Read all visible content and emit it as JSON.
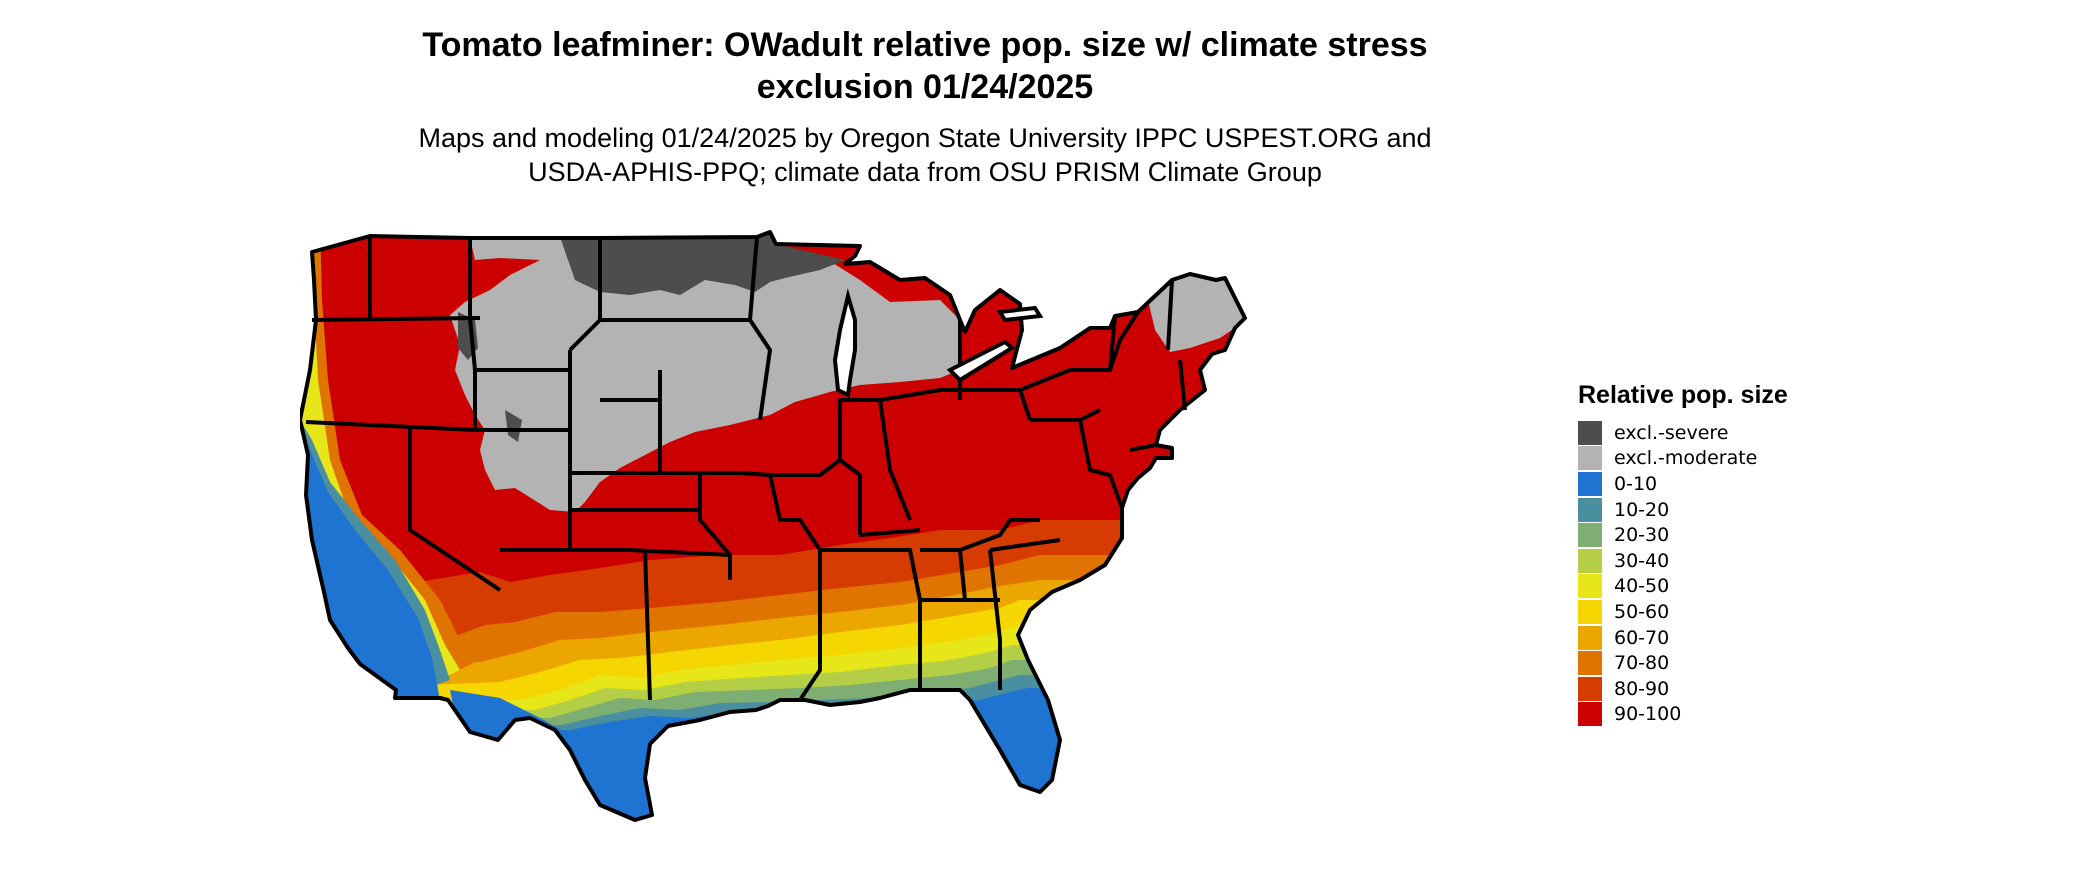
{
  "title": {
    "line1": "Tomato leafminer: OWadult relative pop. size w/ climate stress",
    "line2": "exclusion 01/24/2025"
  },
  "subtitle": {
    "line1": "Maps and modeling 01/24/2025 by Oregon State University IPPC USPEST.ORG and",
    "line2": "USDA-APHIS-PPQ; climate data from OSU PRISM Climate Group"
  },
  "legend": {
    "title": "Relative pop. size",
    "items": [
      {
        "label": "excl.-severe",
        "color": "#4d4d4d"
      },
      {
        "label": "excl.-moderate",
        "color": "#b3b3b3"
      },
      {
        "label": "0-10",
        "color": "#1f73d1"
      },
      {
        "label": "10-20",
        "color": "#4a8fa0"
      },
      {
        "label": "20-30",
        "color": "#7fae73"
      },
      {
        "label": "30-40",
        "color": "#b4cf45"
      },
      {
        "label": "40-50",
        "color": "#e6e619"
      },
      {
        "label": "50-60",
        "color": "#f5d600"
      },
      {
        "label": "60-70",
        "color": "#eba600"
      },
      {
        "label": "70-80",
        "color": "#e07400"
      },
      {
        "label": "80-90",
        "color": "#d63c00"
      },
      {
        "label": "90-100",
        "color": "#cc0000"
      }
    ]
  }
}
